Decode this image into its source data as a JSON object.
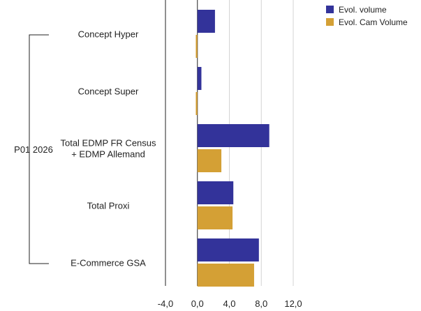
{
  "chart_data": {
    "type": "bar",
    "orientation": "horizontal",
    "title": "",
    "group_label": "P01 2026",
    "categories": [
      [
        "Concept Hyper"
      ],
      [
        "Concept Super"
      ],
      [
        "Total EDMP FR Census",
        "+ EDMP Allemand"
      ],
      [
        "Total Proxi"
      ],
      [
        "E-Commerce GSA"
      ]
    ],
    "series": [
      {
        "name": "Evol. volume",
        "color": "#33339a",
        "values": [
          2.2,
          0.5,
          9.0,
          4.5,
          7.7
        ]
      },
      {
        "name": "Evol. Cam Volume",
        "color": "#d4a035",
        "values": [
          -0.2,
          -0.2,
          3.0,
          4.4,
          7.1
        ]
      }
    ],
    "xlim": [
      -4,
      12
    ],
    "xticks": [
      -4,
      0,
      4,
      8,
      12
    ],
    "xtick_labels": [
      "-4,0",
      "0,0",
      "4,0",
      "8,0",
      "12,0"
    ],
    "grid": true,
    "legend_position": "top-right"
  }
}
